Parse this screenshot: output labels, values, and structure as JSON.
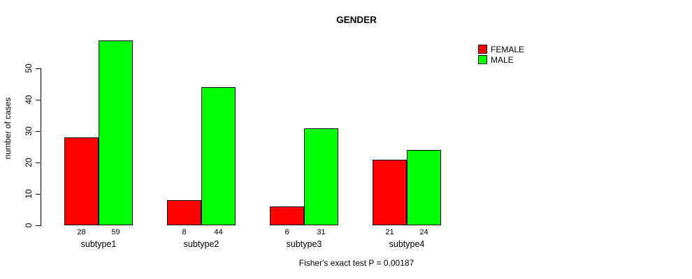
{
  "chart_data": {
    "type": "bar",
    "title": "GENDER",
    "ylabel": "number of cases",
    "xlabel": "",
    "categories": [
      "subtype1",
      "subtype2",
      "subtype3",
      "subtype4"
    ],
    "series": [
      {
        "name": "FEMALE",
        "color": "#ff0000",
        "values": [
          28,
          8,
          6,
          21
        ]
      },
      {
        "name": "MALE",
        "color": "#00ff00",
        "values": [
          59,
          44,
          31,
          24
        ]
      }
    ],
    "bar_value_labels": [
      [
        "28",
        "59"
      ],
      [
        "8",
        "44"
      ],
      [
        "6",
        "31"
      ],
      [
        "21",
        "24"
      ]
    ],
    "yticks": [
      0,
      10,
      20,
      30,
      40,
      50
    ],
    "ylim": [
      0,
      59
    ],
    "grid": false,
    "legend_position": "top-right",
    "annotation": "Fisher's exact test P = 0.00187",
    "bar_border_color": "#000000",
    "background_color": "#ffffff"
  }
}
